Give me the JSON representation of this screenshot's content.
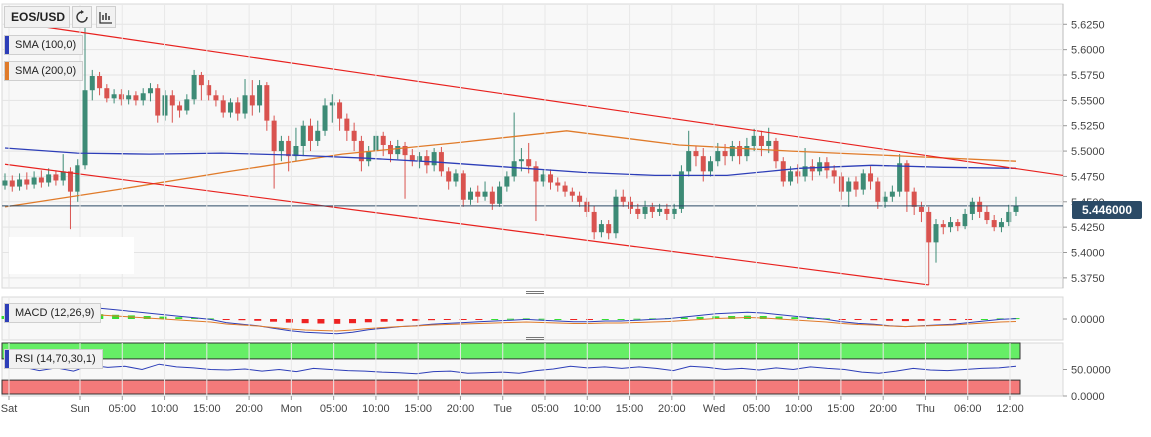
{
  "toolbar": {
    "symbol": "EOS/USD",
    "refresh_icon": "refresh-icon",
    "chart_type_icon": "bar-chart-icon"
  },
  "legends": {
    "sma100": "SMA (100,0)",
    "sma200": "SMA (200,0)",
    "macd": "MACD (12,26,9)",
    "rsi": "RSI (14,70,30,1)"
  },
  "colors": {
    "up": "#3d8b76",
    "down": "#d9534f",
    "sma100": "#2d3eb8",
    "sma200": "#e07b2a",
    "trend": "#e8211e",
    "last_price_line": "#2b4a66",
    "macd_pos": "#33dd33",
    "macd_neg": "#ee2222",
    "rsi_over": "#66ee66",
    "rsi_under": "#f47a7a"
  },
  "last_price": "5.446000",
  "chart_data": [
    {
      "type": "candlestick",
      "panel": "price",
      "symbol": "EOS/USD",
      "y_ticks": [
        "5.6250",
        "5.6000",
        "5.5750",
        "5.5500",
        "5.5250",
        "5.5000",
        "5.4750",
        "5.4500",
        "5.4250",
        "5.4000",
        "5.3750"
      ],
      "ylim": [
        5.365,
        5.645
      ],
      "x_ticks": [
        "Sat",
        "Sun",
        "05:00",
        "10:00",
        "15:00",
        "20:00",
        "Mon",
        "05:00",
        "10:00",
        "15:00",
        "20:00",
        "Tue",
        "05:00",
        "10:00",
        "15:00",
        "20:00",
        "Wed",
        "05:00",
        "10:00",
        "15:00",
        "20:00",
        "Thu",
        "06:00",
        "12:00"
      ],
      "grid": true,
      "last_price": 5.446,
      "candles": [
        [
          5.466,
          5.471,
          5.478,
          5.462
        ],
        [
          5.471,
          5.465,
          5.476,
          5.46
        ],
        [
          5.465,
          5.472,
          5.478,
          5.461
        ],
        [
          5.472,
          5.467,
          5.479,
          5.462
        ],
        [
          5.467,
          5.474,
          5.48,
          5.463
        ],
        [
          5.474,
          5.469,
          5.481,
          5.464
        ],
        [
          5.469,
          5.477,
          5.483,
          5.465
        ],
        [
          5.477,
          5.471,
          5.481,
          5.466
        ],
        [
          5.471,
          5.48,
          5.497,
          5.466
        ],
        [
          5.48,
          5.46,
          5.484,
          5.423
        ],
        [
          5.46,
          5.486,
          5.492,
          5.45
        ],
        [
          5.486,
          5.56,
          5.625,
          5.482
        ],
        [
          5.56,
          5.574,
          5.58,
          5.55
        ],
        [
          5.574,
          5.562,
          5.578,
          5.555
        ],
        [
          5.562,
          5.552,
          5.566,
          5.548
        ],
        [
          5.552,
          5.556,
          5.561,
          5.547
        ],
        [
          5.556,
          5.551,
          5.561,
          5.545
        ],
        [
          5.551,
          5.555,
          5.56,
          5.546
        ],
        [
          5.555,
          5.55,
          5.559,
          5.545
        ],
        [
          5.55,
          5.557,
          5.562,
          5.545
        ],
        [
          5.557,
          5.562,
          5.567,
          5.549
        ],
        [
          5.562,
          5.535,
          5.566,
          5.528
        ],
        [
          5.535,
          5.555,
          5.56,
          5.53
        ],
        [
          5.555,
          5.545,
          5.56,
          5.528
        ],
        [
          5.545,
          5.54,
          5.549,
          5.533
        ],
        [
          5.54,
          5.551,
          5.556,
          5.536
        ],
        [
          5.551,
          5.575,
          5.58,
          5.546
        ],
        [
          5.575,
          5.565,
          5.578,
          5.55
        ],
        [
          5.565,
          5.555,
          5.57,
          5.55
        ],
        [
          5.555,
          5.55,
          5.56,
          5.544
        ],
        [
          5.55,
          5.538,
          5.555,
          5.533
        ],
        [
          5.538,
          5.548,
          5.552,
          5.533
        ],
        [
          5.548,
          5.537,
          5.553,
          5.53
        ],
        [
          5.537,
          5.555,
          5.571,
          5.532
        ],
        [
          5.555,
          5.545,
          5.57,
          5.535
        ],
        [
          5.545,
          5.565,
          5.57,
          5.538
        ],
        [
          5.565,
          5.53,
          5.568,
          5.52
        ],
        [
          5.53,
          5.5,
          5.535,
          5.463
        ],
        [
          5.5,
          5.51,
          5.515,
          5.49
        ],
        [
          5.51,
          5.495,
          5.515,
          5.48
        ],
        [
          5.495,
          5.505,
          5.523,
          5.49
        ],
        [
          5.505,
          5.525,
          5.53,
          5.495
        ],
        [
          5.525,
          5.51,
          5.532,
          5.5
        ],
        [
          5.51,
          5.52,
          5.53,
          5.505
        ],
        [
          5.52,
          5.545,
          5.552,
          5.515
        ],
        [
          5.545,
          5.548,
          5.556,
          5.528
        ],
        [
          5.548,
          5.532,
          5.551,
          5.52
        ],
        [
          5.532,
          5.52,
          5.537,
          5.51
        ],
        [
          5.52,
          5.51,
          5.528,
          5.5
        ],
        [
          5.51,
          5.49,
          5.515,
          5.48
        ],
        [
          5.49,
          5.5,
          5.505,
          5.485
        ],
        [
          5.5,
          5.515,
          5.52,
          5.495
        ],
        [
          5.515,
          5.506,
          5.519,
          5.495
        ],
        [
          5.506,
          5.497,
          5.51,
          5.489
        ],
        [
          5.497,
          5.505,
          5.511,
          5.492
        ],
        [
          5.505,
          5.496,
          5.509,
          5.453
        ],
        [
          5.496,
          5.49,
          5.502,
          5.485
        ],
        [
          5.49,
          5.495,
          5.499,
          5.483
        ],
        [
          5.495,
          5.486,
          5.501,
          5.478
        ],
        [
          5.486,
          5.499,
          5.503,
          5.48
        ],
        [
          5.499,
          5.48,
          5.504,
          5.475
        ],
        [
          5.48,
          5.47,
          5.484,
          5.462
        ],
        [
          5.47,
          5.478,
          5.482,
          5.465
        ],
        [
          5.478,
          5.452,
          5.481,
          5.445
        ],
        [
          5.452,
          5.46,
          5.464,
          5.447
        ],
        [
          5.46,
          5.455,
          5.466,
          5.449
        ],
        [
          5.455,
          5.46,
          5.47,
          5.451
        ],
        [
          5.46,
          5.448,
          5.465,
          5.442
        ],
        [
          5.448,
          5.465,
          5.47,
          5.445
        ],
        [
          5.465,
          5.475,
          5.48,
          5.46
        ],
        [
          5.475,
          5.49,
          5.538,
          5.47
        ],
        [
          5.49,
          5.492,
          5.503,
          5.48
        ],
        [
          5.492,
          5.485,
          5.508,
          5.478
        ],
        [
          5.485,
          5.47,
          5.49,
          5.431
        ],
        [
          5.47,
          5.477,
          5.481,
          5.465
        ],
        [
          5.477,
          5.469,
          5.482,
          5.462
        ],
        [
          5.469,
          5.466,
          5.474,
          5.46
        ],
        [
          5.466,
          5.46,
          5.47,
          5.455
        ],
        [
          5.46,
          5.456,
          5.464,
          5.45
        ],
        [
          5.456,
          5.45,
          5.46,
          5.445
        ],
        [
          5.45,
          5.44,
          5.454,
          5.435
        ],
        [
          5.44,
          5.42,
          5.446,
          5.413
        ],
        [
          5.42,
          5.428,
          5.432,
          5.415
        ],
        [
          5.428,
          5.419,
          5.432,
          5.413
        ],
        [
          5.419,
          5.455,
          5.462,
          5.414
        ],
        [
          5.455,
          5.45,
          5.462,
          5.445
        ],
        [
          5.45,
          5.443,
          5.455,
          5.438
        ],
        [
          5.443,
          5.438,
          5.448,
          5.433
        ],
        [
          5.438,
          5.445,
          5.451,
          5.433
        ],
        [
          5.445,
          5.44,
          5.449,
          5.434
        ],
        [
          5.44,
          5.443,
          5.448,
          5.436
        ],
        [
          5.443,
          5.438,
          5.448,
          5.432
        ],
        [
          5.438,
          5.443,
          5.448,
          5.433
        ],
        [
          5.443,
          5.48,
          5.486,
          5.439
        ],
        [
          5.48,
          5.5,
          5.52,
          5.475
        ],
        [
          5.5,
          5.495,
          5.505,
          5.485
        ],
        [
          5.495,
          5.48,
          5.503,
          5.47
        ],
        [
          5.48,
          5.49,
          5.495,
          5.475
        ],
        [
          5.49,
          5.5,
          5.508,
          5.485
        ],
        [
          5.5,
          5.495,
          5.507,
          5.486
        ],
        [
          5.495,
          5.505,
          5.51,
          5.49
        ],
        [
          5.505,
          5.495,
          5.51,
          5.487
        ],
        [
          5.495,
          5.505,
          5.513,
          5.49
        ],
        [
          5.505,
          5.515,
          5.522,
          5.5
        ],
        [
          5.515,
          5.505,
          5.52,
          5.495
        ],
        [
          5.505,
          5.51,
          5.523,
          5.498
        ],
        [
          5.51,
          5.49,
          5.513,
          5.483
        ],
        [
          5.49,
          5.47,
          5.494,
          5.465
        ],
        [
          5.47,
          5.48,
          5.485,
          5.466
        ],
        [
          5.48,
          5.475,
          5.487,
          5.468
        ],
        [
          5.475,
          5.485,
          5.503,
          5.47
        ],
        [
          5.485,
          5.48,
          5.492,
          5.471
        ],
        [
          5.48,
          5.489,
          5.494,
          5.476
        ],
        [
          5.489,
          5.481,
          5.494,
          5.473
        ],
        [
          5.481,
          5.475,
          5.486,
          5.468
        ],
        [
          5.475,
          5.46,
          5.479,
          5.452
        ],
        [
          5.46,
          5.47,
          5.474,
          5.445
        ],
        [
          5.47,
          5.462,
          5.475,
          5.455
        ],
        [
          5.462,
          5.478,
          5.482,
          5.457
        ],
        [
          5.478,
          5.47,
          5.485,
          5.462
        ],
        [
          5.47,
          5.45,
          5.474,
          5.443
        ],
        [
          5.45,
          5.455,
          5.46,
          5.444
        ],
        [
          5.455,
          5.46,
          5.466,
          5.45
        ],
        [
          5.46,
          5.488,
          5.497,
          5.455
        ],
        [
          5.488,
          5.46,
          5.491,
          5.44
        ],
        [
          5.46,
          5.445,
          5.464,
          5.437
        ],
        [
          5.445,
          5.44,
          5.45,
          5.43
        ],
        [
          5.44,
          5.41,
          5.445,
          5.368
        ],
        [
          5.41,
          5.428,
          5.433,
          5.39
        ],
        [
          5.428,
          5.425,
          5.432,
          5.418
        ],
        [
          5.425,
          5.43,
          5.435,
          5.42
        ],
        [
          5.43,
          5.426,
          5.433,
          5.421
        ],
        [
          5.426,
          5.438,
          5.443,
          5.423
        ],
        [
          5.438,
          5.45,
          5.454,
          5.432
        ],
        [
          5.45,
          5.44,
          5.455,
          5.434
        ],
        [
          5.44,
          5.432,
          5.446,
          5.428
        ],
        [
          5.432,
          5.425,
          5.437,
          5.421
        ],
        [
          5.425,
          5.43,
          5.434,
          5.42
        ],
        [
          5.43,
          5.44,
          5.447,
          5.426
        ],
        [
          5.44,
          5.446,
          5.455,
          5.436
        ]
      ],
      "sma100": [
        5.503,
        5.498,
        5.497,
        5.498,
        5.496,
        5.493,
        5.489,
        5.484,
        5.479,
        5.476,
        5.476,
        5.483,
        5.486,
        5.484,
        5.483
      ],
      "sma200": [
        5.445,
        5.462,
        5.48,
        5.497,
        5.508,
        5.52,
        5.506,
        5.5,
        5.495,
        5.49
      ],
      "trendlines": [
        [
          5.628,
          5.476
        ],
        [
          5.487,
          5.368
        ]
      ]
    },
    {
      "type": "macd",
      "panel": "macd",
      "params": "12,26,9",
      "y_ticks": [
        "0.0000"
      ],
      "histogram": [
        0.5,
        0.6,
        0.7,
        0.8,
        0.85,
        0.9,
        0.8,
        0.7,
        0.6,
        0.5,
        0.4,
        0.3,
        0.2,
        0.1,
        -0.1,
        -0.2,
        -0.3,
        -0.45,
        -0.6,
        -0.7,
        -0.75,
        -0.8,
        -0.7,
        -0.55,
        -0.45,
        -0.35,
        -0.3,
        -0.2,
        -0.15,
        -0.1,
        -0.05,
        0.0,
        0.05,
        0.1,
        0.05,
        0.0,
        -0.05,
        -0.05,
        0.0,
        0.0,
        0.05,
        0.1,
        0.15,
        0.25,
        0.35,
        0.45,
        0.5,
        0.55,
        0.5,
        0.4,
        0.3,
        0.2,
        0.1,
        -0.05,
        -0.15,
        -0.2,
        -0.3,
        -0.35,
        -0.3,
        -0.25,
        -0.2,
        -0.1,
        0.0,
        0.1,
        0.15
      ]
    },
    {
      "type": "rsi",
      "panel": "rsi",
      "params": "14,70,30,1",
      "y_ticks": [
        "50.0000",
        "0.0000"
      ],
      "ylim": [
        0,
        100
      ],
      "values": [
        52,
        55,
        48,
        53,
        47,
        58,
        54,
        56,
        50,
        60,
        55,
        53,
        50,
        49,
        51,
        47,
        50,
        46,
        52,
        50,
        48,
        47,
        45,
        44,
        42,
        46,
        47,
        43,
        44,
        45,
        43,
        48,
        51,
        56,
        53,
        55,
        52,
        55,
        52,
        48,
        56,
        54,
        50,
        52,
        49,
        53,
        50,
        55,
        52,
        50,
        45,
        43,
        47,
        52,
        49,
        48,
        50,
        52,
        53,
        56
      ]
    }
  ]
}
